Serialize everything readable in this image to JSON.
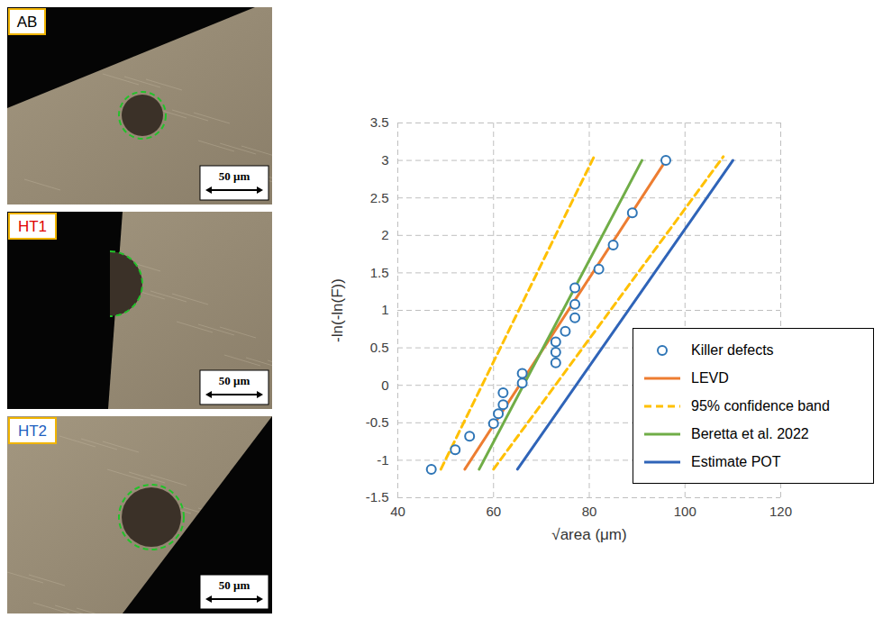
{
  "images": [
    {
      "label": "AB",
      "color": "#000000",
      "scale_bar": "50 μm"
    },
    {
      "label": "HT1",
      "color": "#e00000",
      "scale_bar": "50 μm"
    },
    {
      "label": "HT2",
      "color": "#1f5fbf",
      "scale_bar": "50 μm"
    }
  ],
  "chart_data": {
    "type": "scatter",
    "x_label": "√area (μm)",
    "y_label": "-ln(-ln(F))",
    "xlim": [
      40,
      120
    ],
    "xticks": [
      40,
      60,
      80,
      100,
      120
    ],
    "ylim": [
      -1.5,
      3.5
    ],
    "yticks": [
      -1.5,
      -1,
      -0.5,
      0,
      0.5,
      1,
      1.5,
      2,
      2.5,
      3,
      3.5
    ],
    "grid": true,
    "legend": "bottom-right",
    "series": [
      {
        "name": "Killer defects",
        "type": "scatter",
        "marker": "circle",
        "color": "#2e75b6",
        "x": [
          47,
          52,
          55,
          60,
          61,
          62,
          62,
          66,
          66,
          73,
          73,
          73,
          75,
          77,
          77,
          77,
          82,
          85,
          89,
          96
        ],
        "values": [
          -1.12,
          -0.86,
          -0.68,
          -0.51,
          -0.38,
          -0.26,
          -0.1,
          0.03,
          0.16,
          0.3,
          0.44,
          0.58,
          0.72,
          0.9,
          1.08,
          1.3,
          1.55,
          1.87,
          2.3,
          3.0
        ]
      },
      {
        "name": "LEVD",
        "type": "line",
        "line_style": "solid",
        "color": "#ed7d31",
        "x": [
          54,
          96
        ],
        "values": [
          -1.12,
          3.0
        ]
      },
      {
        "name": "95% confidence band",
        "type": "line",
        "line_style": "dashed",
        "color": "#ffc000",
        "x": [
          49,
          81,
          null,
          60,
          108
        ],
        "values": [
          -1.12,
          3.05,
          null,
          -1.12,
          3.05
        ]
      },
      {
        "name": "Beretta et al. 2022",
        "type": "line",
        "line_style": "solid",
        "color": "#70ad47",
        "x": [
          57,
          91
        ],
        "values": [
          -1.12,
          3.0
        ]
      },
      {
        "name": "Estimate POT",
        "type": "line",
        "line_style": "solid",
        "color": "#2f64b8",
        "x": [
          65,
          110
        ],
        "values": [
          -1.12,
          3.0
        ]
      }
    ]
  }
}
